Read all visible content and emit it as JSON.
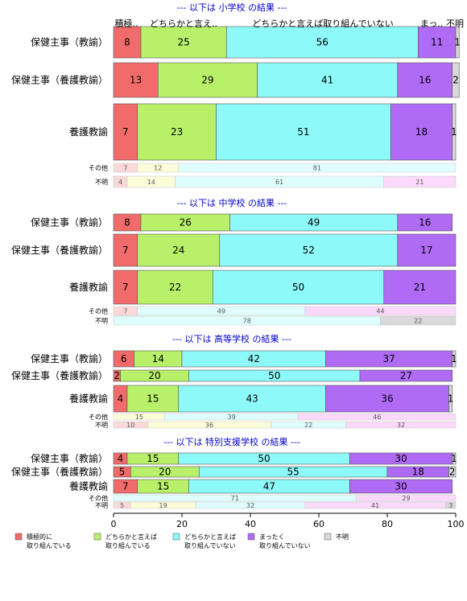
{
  "colors": {
    "積極的に取り組んでいる": "#F26B6B",
    "どちらかと言えば取り組んでいる": "#B8F06A",
    "どちらかと言えば取り組んでいない": "#8EF9F9",
    "まったく取り組んでいない": "#B06BF5",
    "不明": "#D9D9D9",
    "title": "#0000CC"
  },
  "top_labels": [
    "積極..",
    "どちらかと言え..",
    "どちらかと言えば取り組んでいない",
    "まっ..",
    "不明"
  ],
  "chart_data": {
    "type": "bar",
    "orientation": "horizontal",
    "stacked": "percent",
    "xlim": [
      0,
      100
    ],
    "xticks": [
      0,
      20,
      40,
      60,
      80,
      100
    ],
    "series_names": [
      "積極的に取り組んでいる",
      "どちらかと言えば取り組んでいる",
      "どちらかと言えば取り組んでいない",
      "まったく取り組んでいない",
      "不明"
    ],
    "legend": {
      "position": "bottom",
      "entries": [
        [
          "積極的に",
          "取り組んでいる"
        ],
        [
          "どちらかと言えば",
          "取り組んでいる"
        ],
        [
          "どちらかと言えば",
          "取り組んでいない"
        ],
        [
          "まったく",
          "取り組んでいない"
        ],
        [
          "不明"
        ]
      ]
    },
    "panels": [
      {
        "title": "--- 以下は 小学校 の結果 ---",
        "rows": [
          {
            "label": "保健主事（教諭）",
            "values": [
              8,
              25,
              56,
              11,
              1
            ]
          },
          {
            "label": "保健主事（養護教諭）",
            "values": [
              13,
              29,
              41,
              16,
              2
            ]
          },
          {
            "label": "養護教諭",
            "values": [
              7,
              23,
              51,
              18,
              1
            ]
          },
          {
            "label": "その他",
            "values": [
              7,
              12,
              81,
              0,
              0
            ]
          },
          {
            "label": "不明",
            "values": [
              4,
              14,
              61,
              21,
              0
            ]
          }
        ]
      },
      {
        "title": "--- 以下は 中学校 の結果 ---",
        "rows": [
          {
            "label": "保健主事（教諭）",
            "values": [
              8,
              26,
              49,
              16,
              0
            ]
          },
          {
            "label": "保健主事（養護教諭）",
            "values": [
              7,
              24,
              52,
              17,
              0
            ]
          },
          {
            "label": "養護教諭",
            "values": [
              7,
              22,
              50,
              21,
              0
            ]
          },
          {
            "label": "その他",
            "values": [
              7,
              0,
              49,
              44,
              0
            ]
          },
          {
            "label": "不明",
            "values": [
              0,
              0,
              78,
              0,
              22
            ]
          }
        ]
      },
      {
        "title": "--- 以下は 高等学校 の結果 ---",
        "rows": [
          {
            "label": "保健主事（教諭）",
            "values": [
              6,
              14,
              42,
              37,
              1
            ]
          },
          {
            "label": "保健主事（養護教諭）",
            "values": [
              2,
              20,
              50,
              27,
              0
            ]
          },
          {
            "label": "養護教諭",
            "values": [
              4,
              15,
              43,
              36,
              1
            ]
          },
          {
            "label": "その他",
            "values": [
              0,
              15,
              39,
              46,
              0
            ]
          },
          {
            "label": "不明",
            "values": [
              10,
              36,
              22,
              32,
              0
            ]
          }
        ]
      },
      {
        "title": "--- 以下は 特別支援学校 の結果 ---",
        "rows": [
          {
            "label": "保健主事（教諭）",
            "values": [
              4,
              15,
              50,
              30,
              1
            ]
          },
          {
            "label": "保健主事（養護教諭）",
            "values": [
              5,
              20,
              55,
              18,
              2
            ]
          },
          {
            "label": "養護教諭",
            "values": [
              7,
              15,
              47,
              30,
              0
            ]
          },
          {
            "label": "その他",
            "values": [
              0,
              0,
              71,
              29,
              0
            ]
          },
          {
            "label": "不明",
            "values": [
              5,
              19,
              32,
              41,
              3
            ]
          }
        ]
      }
    ]
  }
}
